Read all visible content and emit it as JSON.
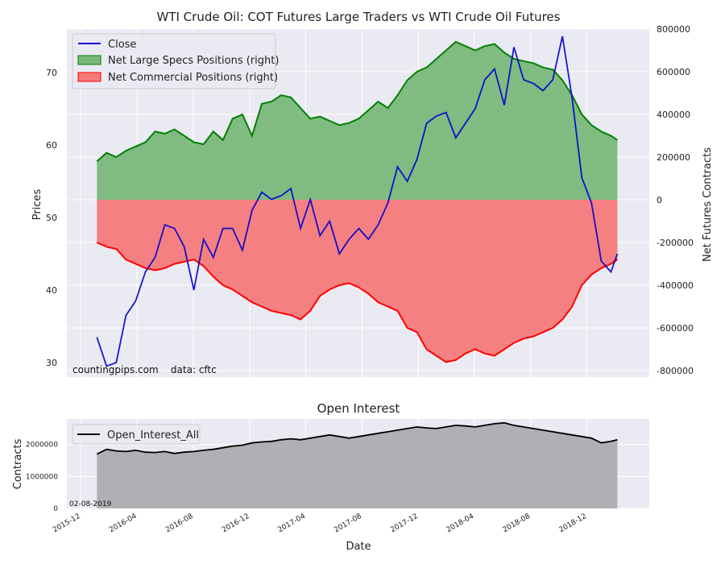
{
  "chart_data": [
    {
      "type": "line+area",
      "title": "WTI Crude Oil: COT Futures Large Traders vs WTI Crude Oil Futures",
      "xlabel": "",
      "ylabel": "Prices",
      "ylabel_right": "Net Futures Contracts",
      "ylim": [
        28,
        76
      ],
      "ylim_right": [
        -830000,
        800000
      ],
      "yticks": [
        30,
        40,
        50,
        60,
        70
      ],
      "yticks_right": [
        {
          "value": 800000,
          "label": "800000"
        },
        {
          "value": 600000,
          "label": "600000"
        },
        {
          "value": 400000,
          "label": "400000"
        },
        {
          "value": 200000,
          "label": "200000"
        },
        {
          "value": 0,
          "label": "0"
        },
        {
          "value": -200000,
          "label": "-200000"
        },
        {
          "value": -400000,
          "label": "-400000"
        },
        {
          "value": -600000,
          "label": "-600000"
        },
        {
          "value": -800000,
          "label": "-800000"
        }
      ],
      "legend_position": "top-left",
      "grid": true,
      "source_text": "countingpips.com    data: cftc",
      "x_dates": [
        "2016-01-05",
        "2016-01-26",
        "2016-02-16",
        "2016-03-08",
        "2016-03-29",
        "2016-04-19",
        "2016-05-10",
        "2016-05-31",
        "2016-06-21",
        "2016-07-12",
        "2016-08-02",
        "2016-08-23",
        "2016-09-13",
        "2016-10-04",
        "2016-10-25",
        "2016-11-15",
        "2016-12-06",
        "2016-12-27",
        "2017-01-17",
        "2017-02-07",
        "2017-02-28",
        "2017-03-21",
        "2017-04-11",
        "2017-05-02",
        "2017-05-23",
        "2017-06-13",
        "2017-07-04",
        "2017-07-25",
        "2017-08-15",
        "2017-09-05",
        "2017-09-26",
        "2017-10-17",
        "2017-11-07",
        "2017-11-28",
        "2017-12-19",
        "2018-01-09",
        "2018-01-30",
        "2018-02-20",
        "2018-03-13",
        "2018-04-03",
        "2018-04-24",
        "2018-05-15",
        "2018-06-05",
        "2018-06-26",
        "2018-07-17",
        "2018-08-07",
        "2018-08-28",
        "2018-09-18",
        "2018-10-09",
        "2018-10-30",
        "2018-11-20",
        "2018-12-11",
        "2019-01-01",
        "2019-01-22",
        "2019-02-05"
      ],
      "series": [
        {
          "name": "Close",
          "axis": "left",
          "color": "#0000cc",
          "values": [
            33.5,
            29.5,
            30.0,
            36.5,
            38.5,
            42.5,
            44.5,
            49.0,
            48.5,
            46.0,
            40.0,
            47.0,
            44.5,
            48.5,
            48.5,
            45.5,
            51.0,
            53.5,
            52.5,
            53.0,
            54.0,
            48.5,
            52.5,
            47.5,
            49.5,
            45.0,
            47.0,
            48.5,
            47.0,
            49.0,
            52.0,
            57.0,
            55.0,
            58.0,
            63.0,
            64.0,
            64.5,
            61.0,
            63.0,
            65.0,
            69.0,
            70.5,
            65.5,
            73.5,
            69.0,
            68.5,
            67.5,
            69.0,
            75.0,
            66.5,
            55.5,
            52.0,
            44.0,
            42.5,
            45.0
          ]
        },
        {
          "name": "Net Large Specs Positions (right)",
          "axis": "right",
          "color": "#008000",
          "fill": "#7ab87a",
          "values": [
            180000,
            220000,
            200000,
            230000,
            250000,
            270000,
            320000,
            310000,
            330000,
            300000,
            270000,
            260000,
            320000,
            280000,
            380000,
            400000,
            300000,
            450000,
            460000,
            490000,
            480000,
            430000,
            380000,
            390000,
            370000,
            350000,
            360000,
            380000,
            420000,
            460000,
            430000,
            490000,
            560000,
            600000,
            620000,
            660000,
            700000,
            740000,
            720000,
            700000,
            720000,
            730000,
            690000,
            660000,
            650000,
            640000,
            620000,
            610000,
            560000,
            490000,
            400000,
            350000,
            320000,
            300000,
            280000
          ]
        },
        {
          "name": "Net Commercial Positions (right)",
          "axis": "right",
          "color": "#ff0000",
          "fill": "#f47a7a",
          "values": [
            -200000,
            -220000,
            -230000,
            -280000,
            -300000,
            -320000,
            -330000,
            -320000,
            -300000,
            -290000,
            -280000,
            -310000,
            -360000,
            -400000,
            -420000,
            -450000,
            -480000,
            -500000,
            -520000,
            -530000,
            -540000,
            -560000,
            -520000,
            -450000,
            -420000,
            -400000,
            -390000,
            -410000,
            -440000,
            -480000,
            -500000,
            -520000,
            -600000,
            -620000,
            -700000,
            -730000,
            -760000,
            -750000,
            -720000,
            -700000,
            -720000,
            -730000,
            -700000,
            -670000,
            -650000,
            -640000,
            -620000,
            -600000,
            -560000,
            -500000,
            -400000,
            -350000,
            -320000,
            -300000,
            -280000
          ]
        }
      ],
      "area_colors": {
        "positive": "#7ab87a",
        "negative": "#f47a7a"
      },
      "line_colors": {
        "close": "#0000cc",
        "specs": "#008000",
        "commercial": "#ff0000"
      }
    },
    {
      "type": "area",
      "title": "Open Interest",
      "xlabel": "Date",
      "ylabel": "Contracts",
      "ylim": [
        0,
        2800000
      ],
      "yticks": [
        {
          "value": 0,
          "label": "0"
        },
        {
          "value": 1000000,
          "label": "1000000"
        },
        {
          "value": 2000000,
          "label": "2000000"
        }
      ],
      "date_label": "02-08-2019",
      "x_tick_labels": [
        "2015-12",
        "2016-04",
        "2016-08",
        "2016-12",
        "2017-04",
        "2017-08",
        "2017-12",
        "2018-04",
        "2018-08",
        "2018-12"
      ],
      "legend_position": "top-left",
      "grid": true,
      "series": [
        {
          "name": "Open_Interest_All",
          "color": "#000000",
          "fill": "#b0b0b4",
          "values": [
            1700000,
            1850000,
            1800000,
            1780000,
            1820000,
            1760000,
            1750000,
            1780000,
            1720000,
            1760000,
            1780000,
            1820000,
            1850000,
            1900000,
            1950000,
            1980000,
            2050000,
            2080000,
            2100000,
            2150000,
            2180000,
            2150000,
            2200000,
            2250000,
            2300000,
            2250000,
            2200000,
            2250000,
            2300000,
            2350000,
            2400000,
            2450000,
            2500000,
            2550000,
            2520000,
            2500000,
            2550000,
            2600000,
            2580000,
            2550000,
            2600000,
            2650000,
            2680000,
            2600000,
            2550000,
            2500000,
            2450000,
            2400000,
            2350000,
            2300000,
            2250000,
            2200000,
            2050000,
            2100000,
            2150000
          ]
        }
      ]
    }
  ]
}
